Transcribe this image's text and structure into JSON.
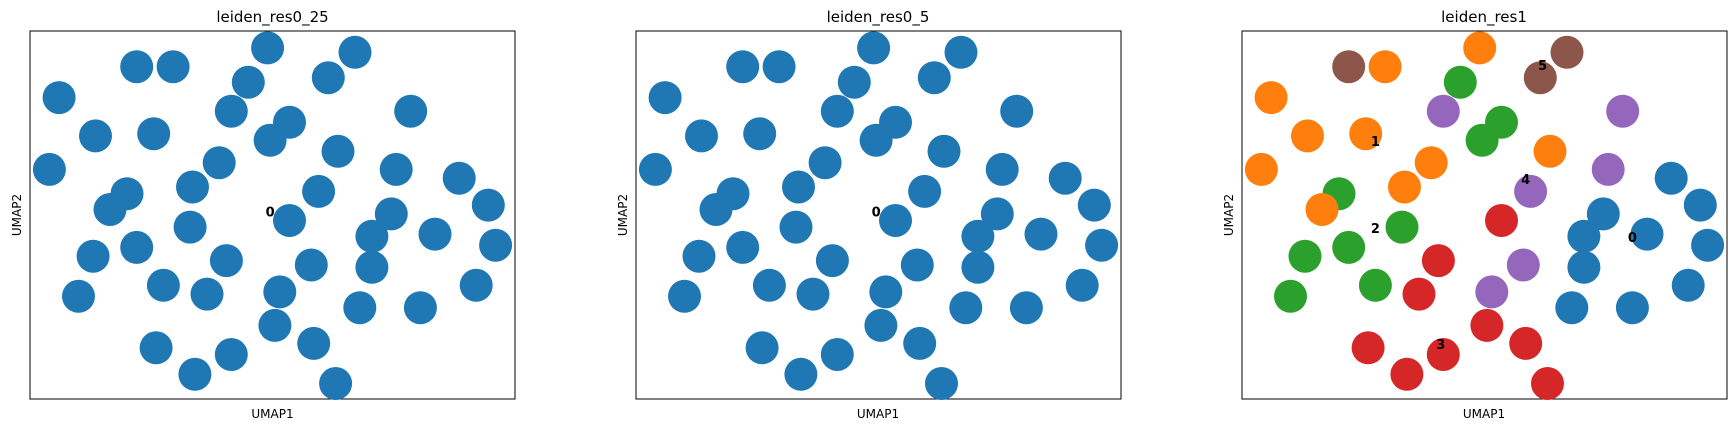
{
  "chart_data": [
    {
      "type": "scatter",
      "title": "leiden_res0_25",
      "xlabel": "UMAP1",
      "ylabel": "UMAP2",
      "xlim": [
        0,
        100
      ],
      "ylim": [
        0,
        100
      ],
      "grid": false,
      "legend": "on data",
      "colors": {
        "0": "#1f77b4"
      },
      "cluster_labels": [
        {
          "text": "0",
          "x": 49.5,
          "y": 50.5
        }
      ],
      "points": [
        {
          "x": 49,
          "y": 95.4,
          "c": "0"
        },
        {
          "x": 67,
          "y": 94.2,
          "c": "0"
        },
        {
          "x": 22,
          "y": 90.3,
          "c": "0"
        },
        {
          "x": 29.5,
          "y": 90.3,
          "c": "0"
        },
        {
          "x": 61.5,
          "y": 87.3,
          "c": "0"
        },
        {
          "x": 45,
          "y": 86.1,
          "c": "0"
        },
        {
          "x": 6,
          "y": 81.9,
          "c": "0"
        },
        {
          "x": 78.5,
          "y": 78.2,
          "c": "0"
        },
        {
          "x": 41.5,
          "y": 78.2,
          "c": "0"
        },
        {
          "x": 53.5,
          "y": 75.2,
          "c": "0"
        },
        {
          "x": 13.5,
          "y": 71.5,
          "c": "0"
        },
        {
          "x": 25.5,
          "y": 72.1,
          "c": "0"
        },
        {
          "x": 49.5,
          "y": 70.3,
          "c": "0"
        },
        {
          "x": 63.5,
          "y": 67.3,
          "c": "0"
        },
        {
          "x": 4,
          "y": 62.4,
          "c": "0"
        },
        {
          "x": 39,
          "y": 64.2,
          "c": "0"
        },
        {
          "x": 75.5,
          "y": 62.4,
          "c": "0"
        },
        {
          "x": 88.5,
          "y": 60.0,
          "c": "0"
        },
        {
          "x": 33.5,
          "y": 57.6,
          "c": "0"
        },
        {
          "x": 59.5,
          "y": 56.4,
          "c": "0"
        },
        {
          "x": 20,
          "y": 55.8,
          "c": "0"
        },
        {
          "x": 94.5,
          "y": 52.7,
          "c": "0"
        },
        {
          "x": 16.5,
          "y": 51.5,
          "c": "0"
        },
        {
          "x": 74.5,
          "y": 50.3,
          "c": "0"
        },
        {
          "x": 53.5,
          "y": 48.5,
          "c": "0"
        },
        {
          "x": 33,
          "y": 46.7,
          "c": "0"
        },
        {
          "x": 83.5,
          "y": 44.8,
          "c": "0"
        },
        {
          "x": 70.5,
          "y": 44.2,
          "c": "0"
        },
        {
          "x": 96,
          "y": 41.8,
          "c": "0"
        },
        {
          "x": 22,
          "y": 41.2,
          "c": "0"
        },
        {
          "x": 13,
          "y": 38.8,
          "c": "0"
        },
        {
          "x": 40.5,
          "y": 37.6,
          "c": "0"
        },
        {
          "x": 58,
          "y": 36.4,
          "c": "0"
        },
        {
          "x": 70.5,
          "y": 35.8,
          "c": "0"
        },
        {
          "x": 27.5,
          "y": 30.9,
          "c": "0"
        },
        {
          "x": 92,
          "y": 30.9,
          "c": "0"
        },
        {
          "x": 10,
          "y": 27.9,
          "c": "0"
        },
        {
          "x": 36.5,
          "y": 28.5,
          "c": "0"
        },
        {
          "x": 51.5,
          "y": 29.1,
          "c": "0"
        },
        {
          "x": 80.5,
          "y": 24.8,
          "c": "0"
        },
        {
          "x": 68,
          "y": 24.8,
          "c": "0"
        },
        {
          "x": 50.5,
          "y": 20.0,
          "c": "0"
        },
        {
          "x": 58.5,
          "y": 15.1,
          "c": "0"
        },
        {
          "x": 26,
          "y": 13.9,
          "c": "0"
        },
        {
          "x": 41.5,
          "y": 12.1,
          "c": "0"
        },
        {
          "x": 34,
          "y": 6.7,
          "c": "0"
        },
        {
          "x": 63,
          "y": 4.2,
          "c": "0"
        }
      ]
    },
    {
      "type": "scatter",
      "title": "leiden_res0_5",
      "xlabel": "UMAP1",
      "ylabel": "UMAP2",
      "xlim": [
        0,
        100
      ],
      "ylim": [
        0,
        100
      ],
      "grid": false,
      "legend": "on data",
      "colors": {
        "0": "#1f77b4"
      },
      "cluster_labels": [
        {
          "text": "0",
          "x": 49.5,
          "y": 50.5
        }
      ],
      "points": [
        {
          "x": 49,
          "y": 95.4,
          "c": "0"
        },
        {
          "x": 67,
          "y": 94.2,
          "c": "0"
        },
        {
          "x": 22,
          "y": 90.3,
          "c": "0"
        },
        {
          "x": 29.5,
          "y": 90.3,
          "c": "0"
        },
        {
          "x": 61.5,
          "y": 87.3,
          "c": "0"
        },
        {
          "x": 45,
          "y": 86.1,
          "c": "0"
        },
        {
          "x": 6,
          "y": 81.9,
          "c": "0"
        },
        {
          "x": 78.5,
          "y": 78.2,
          "c": "0"
        },
        {
          "x": 41.5,
          "y": 78.2,
          "c": "0"
        },
        {
          "x": 53.5,
          "y": 75.2,
          "c": "0"
        },
        {
          "x": 13.5,
          "y": 71.5,
          "c": "0"
        },
        {
          "x": 25.5,
          "y": 72.1,
          "c": "0"
        },
        {
          "x": 49.5,
          "y": 70.3,
          "c": "0"
        },
        {
          "x": 63.5,
          "y": 67.3,
          "c": "0"
        },
        {
          "x": 4,
          "y": 62.4,
          "c": "0"
        },
        {
          "x": 39,
          "y": 64.2,
          "c": "0"
        },
        {
          "x": 75.5,
          "y": 62.4,
          "c": "0"
        },
        {
          "x": 88.5,
          "y": 60.0,
          "c": "0"
        },
        {
          "x": 33.5,
          "y": 57.6,
          "c": "0"
        },
        {
          "x": 59.5,
          "y": 56.4,
          "c": "0"
        },
        {
          "x": 20,
          "y": 55.8,
          "c": "0"
        },
        {
          "x": 94.5,
          "y": 52.7,
          "c": "0"
        },
        {
          "x": 16.5,
          "y": 51.5,
          "c": "0"
        },
        {
          "x": 74.5,
          "y": 50.3,
          "c": "0"
        },
        {
          "x": 53.5,
          "y": 48.5,
          "c": "0"
        },
        {
          "x": 33,
          "y": 46.7,
          "c": "0"
        },
        {
          "x": 83.5,
          "y": 44.8,
          "c": "0"
        },
        {
          "x": 70.5,
          "y": 44.2,
          "c": "0"
        },
        {
          "x": 96,
          "y": 41.8,
          "c": "0"
        },
        {
          "x": 22,
          "y": 41.2,
          "c": "0"
        },
        {
          "x": 13,
          "y": 38.8,
          "c": "0"
        },
        {
          "x": 40.5,
          "y": 37.6,
          "c": "0"
        },
        {
          "x": 58,
          "y": 36.4,
          "c": "0"
        },
        {
          "x": 70.5,
          "y": 35.8,
          "c": "0"
        },
        {
          "x": 27.5,
          "y": 30.9,
          "c": "0"
        },
        {
          "x": 92,
          "y": 30.9,
          "c": "0"
        },
        {
          "x": 10,
          "y": 27.9,
          "c": "0"
        },
        {
          "x": 36.5,
          "y": 28.5,
          "c": "0"
        },
        {
          "x": 51.5,
          "y": 29.1,
          "c": "0"
        },
        {
          "x": 80.5,
          "y": 24.8,
          "c": "0"
        },
        {
          "x": 68,
          "y": 24.8,
          "c": "0"
        },
        {
          "x": 50.5,
          "y": 20.0,
          "c": "0"
        },
        {
          "x": 58.5,
          "y": 15.1,
          "c": "0"
        },
        {
          "x": 26,
          "y": 13.9,
          "c": "0"
        },
        {
          "x": 41.5,
          "y": 12.1,
          "c": "0"
        },
        {
          "x": 34,
          "y": 6.7,
          "c": "0"
        },
        {
          "x": 63,
          "y": 4.2,
          "c": "0"
        }
      ]
    },
    {
      "type": "scatter",
      "title": "leiden_res1",
      "xlabel": "UMAP1",
      "ylabel": "UMAP2",
      "xlim": [
        0,
        100
      ],
      "ylim": [
        0,
        100
      ],
      "grid": false,
      "legend": "on data",
      "colors": {
        "0": "#1f77b4",
        "1": "#ff7f0e",
        "2": "#2ca02c",
        "3": "#d62728",
        "4": "#9467bd",
        "5": "#8c564b"
      },
      "cluster_labels": [
        {
          "text": "0",
          "x": 80.5,
          "y": 43.6
        },
        {
          "text": "1",
          "x": 27.5,
          "y": 69.7
        },
        {
          "text": "2",
          "x": 27.5,
          "y": 46.1
        },
        {
          "text": "3",
          "x": 41,
          "y": 14.5
        },
        {
          "text": "4",
          "x": 58.5,
          "y": 59.4
        },
        {
          "text": "5",
          "x": 62,
          "y": 90.3
        }
      ],
      "points": [
        {
          "x": 49,
          "y": 95.4,
          "c": "1"
        },
        {
          "x": 67,
          "y": 94.2,
          "c": "5"
        },
        {
          "x": 22,
          "y": 90.3,
          "c": "5"
        },
        {
          "x": 29.5,
          "y": 90.3,
          "c": "1"
        },
        {
          "x": 61.5,
          "y": 87.3,
          "c": "5"
        },
        {
          "x": 45,
          "y": 86.1,
          "c": "2"
        },
        {
          "x": 6,
          "y": 81.9,
          "c": "1"
        },
        {
          "x": 78.5,
          "y": 78.2,
          "c": "4"
        },
        {
          "x": 41.5,
          "y": 78.2,
          "c": "4"
        },
        {
          "x": 53.5,
          "y": 75.2,
          "c": "2"
        },
        {
          "x": 13.5,
          "y": 71.5,
          "c": "1"
        },
        {
          "x": 25.5,
          "y": 72.1,
          "c": "1"
        },
        {
          "x": 49.5,
          "y": 70.3,
          "c": "2"
        },
        {
          "x": 63.5,
          "y": 67.3,
          "c": "1"
        },
        {
          "x": 4,
          "y": 62.4,
          "c": "1"
        },
        {
          "x": 39,
          "y": 64.2,
          "c": "1"
        },
        {
          "x": 75.5,
          "y": 62.4,
          "c": "4"
        },
        {
          "x": 88.5,
          "y": 60.0,
          "c": "0"
        },
        {
          "x": 33.5,
          "y": 57.6,
          "c": "1"
        },
        {
          "x": 59.5,
          "y": 56.4,
          "c": "4"
        },
        {
          "x": 20,
          "y": 55.8,
          "c": "2"
        },
        {
          "x": 94.5,
          "y": 52.7,
          "c": "0"
        },
        {
          "x": 16.5,
          "y": 51.5,
          "c": "1"
        },
        {
          "x": 74.5,
          "y": 50.3,
          "c": "0"
        },
        {
          "x": 53.5,
          "y": 48.5,
          "c": "3"
        },
        {
          "x": 33,
          "y": 46.7,
          "c": "2"
        },
        {
          "x": 83.5,
          "y": 44.8,
          "c": "0"
        },
        {
          "x": 70.5,
          "y": 44.2,
          "c": "0"
        },
        {
          "x": 96,
          "y": 41.8,
          "c": "0"
        },
        {
          "x": 22,
          "y": 41.2,
          "c": "2"
        },
        {
          "x": 13,
          "y": 38.8,
          "c": "2"
        },
        {
          "x": 40.5,
          "y": 37.6,
          "c": "3"
        },
        {
          "x": 58,
          "y": 36.4,
          "c": "4"
        },
        {
          "x": 70.5,
          "y": 35.8,
          "c": "0"
        },
        {
          "x": 27.5,
          "y": 30.9,
          "c": "2"
        },
        {
          "x": 92,
          "y": 30.9,
          "c": "0"
        },
        {
          "x": 10,
          "y": 27.9,
          "c": "2"
        },
        {
          "x": 36.5,
          "y": 28.5,
          "c": "3"
        },
        {
          "x": 51.5,
          "y": 29.1,
          "c": "4"
        },
        {
          "x": 80.5,
          "y": 24.8,
          "c": "0"
        },
        {
          "x": 68,
          "y": 24.8,
          "c": "0"
        },
        {
          "x": 50.5,
          "y": 20.0,
          "c": "3"
        },
        {
          "x": 58.5,
          "y": 15.1,
          "c": "3"
        },
        {
          "x": 26,
          "y": 13.9,
          "c": "3"
        },
        {
          "x": 41.5,
          "y": 12.1,
          "c": "3"
        },
        {
          "x": 34,
          "y": 6.7,
          "c": "3"
        },
        {
          "x": 63,
          "y": 4.2,
          "c": "3"
        }
      ]
    }
  ]
}
